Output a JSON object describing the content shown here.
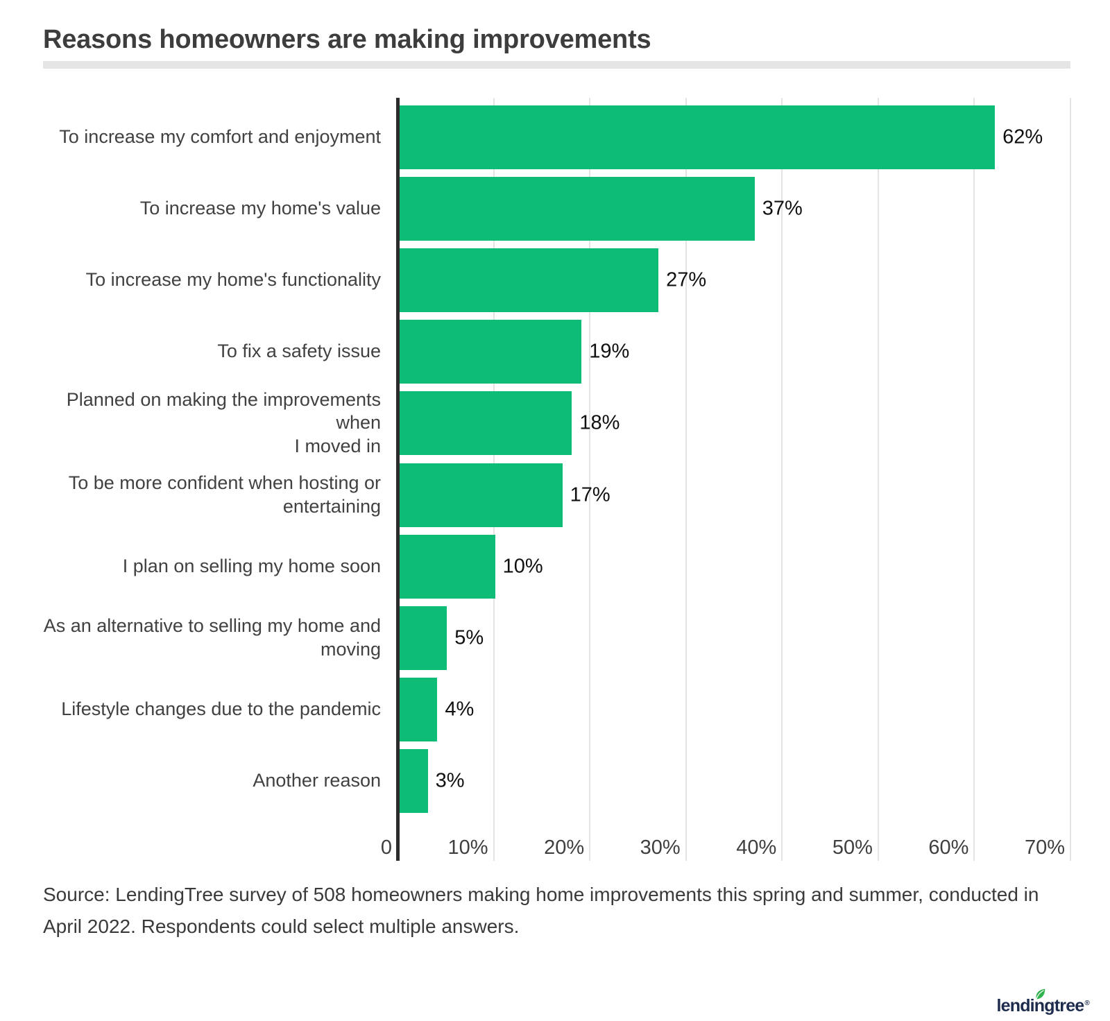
{
  "title": "Reasons homeowners are making improvements",
  "chart_data": {
    "type": "bar",
    "orientation": "horizontal",
    "title": "Reasons homeowners are making improvements",
    "categories": [
      "To increase my comfort and enjoyment",
      "To increase my home's value",
      "To increase my home's functionality",
      "To fix a safety issue",
      "Planned on making the improvements when I moved in",
      "To be more confident when hosting or entertaining",
      "I plan on selling my home soon",
      "As an alternative to selling my home and moving",
      "Lifestyle changes due to the pandemic",
      "Another reason"
    ],
    "categories_display": [
      "To increase my comfort and enjoyment",
      "To increase my home's value",
      "To increase my home's functionality",
      "To fix a safety issue",
      "Planned on making the improvements when\nI moved in",
      "To be more confident when hosting or\nentertaining",
      "I plan on selling my home soon",
      "As an alternative to selling my home and\nmoving",
      "Lifestyle changes due to the pandemic",
      "Another reason"
    ],
    "values": [
      62,
      37,
      27,
      19,
      18,
      17,
      10,
      5,
      4,
      3
    ],
    "value_labels": [
      "62%",
      "37%",
      "27%",
      "19%",
      "18%",
      "17%",
      "10%",
      "5%",
      "4%",
      "3%"
    ],
    "xlabel": "",
    "ylabel": "",
    "xlim": [
      0,
      70
    ],
    "x_ticks": [
      {
        "label": "0",
        "value": 0
      },
      {
        "label": "10%",
        "value": 10
      },
      {
        "label": "20%",
        "value": 20
      },
      {
        "label": "30%",
        "value": 30
      },
      {
        "label": "40%",
        "value": 40
      },
      {
        "label": "50%",
        "value": 50
      },
      {
        "label": "60%",
        "value": 60
      },
      {
        "label": "70%",
        "value": 70
      }
    ],
    "grid": "vertical gridlines on",
    "legend": "none",
    "bar_color": "#0dbc76"
  },
  "colors": {
    "bar_green": "#0dbc76",
    "axis_line": "#2b2b2b",
    "gridline": "#e3e3e3",
    "title_text": "#3d3d3d",
    "divider": "#e5e5e5",
    "logo_navy": "#1d2b4c",
    "leaf_green": "#2fb34c"
  },
  "source_note": "Source: LendingTree survey of 508 homeowners making home improvements this spring and summer, conducted in April 2022. Respondents could select multiple answers.",
  "footer": {
    "logo_text": "lendingtree",
    "registered_mark": "®"
  }
}
